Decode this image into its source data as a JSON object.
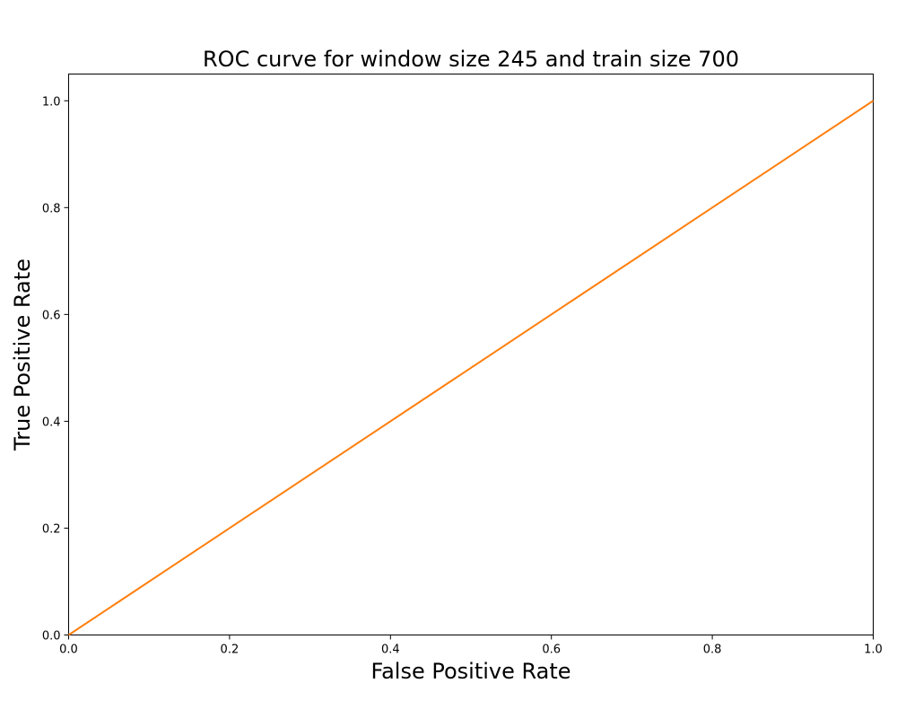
{
  "chart_data": {
    "type": "line",
    "title": "ROC curve  for window size 245 and train size 700",
    "xlabel": "False Positive Rate",
    "ylabel": "True Positive Rate",
    "xlim": [
      0.0,
      1.0
    ],
    "ylim": [
      0.0,
      1.05
    ],
    "xticks": [
      "0.0",
      "0.2",
      "0.4",
      "0.6",
      "0.8",
      "1.0"
    ],
    "yticks": [
      "0.0",
      "0.2",
      "0.4",
      "0.6",
      "0.8",
      "1.0"
    ],
    "grid": false,
    "series": [
      {
        "x": [
          0.0,
          1.0
        ],
        "y": [
          0.0,
          1.0
        ],
        "color": "#ff7f0e"
      }
    ]
  }
}
